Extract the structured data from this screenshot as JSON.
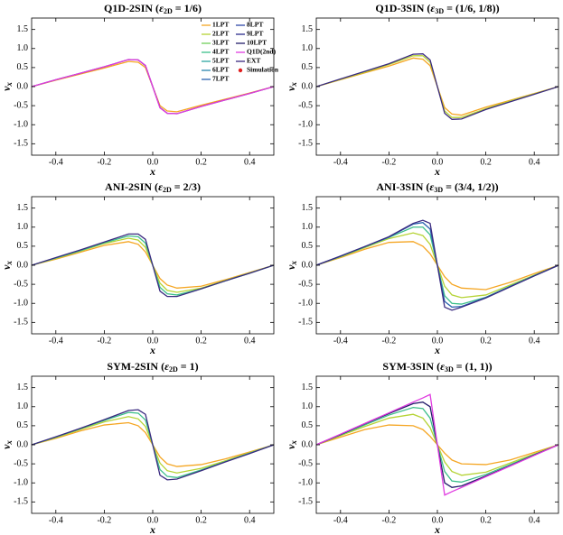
{
  "chart_data": [
    {
      "type": "line",
      "title": "Q1D-2SIN (",
      "title_symbol": "ε",
      "title_sub": "2D",
      "title_rest": " = 1/6)",
      "xlabel": "x",
      "ylabel": "v",
      "ylabel_sub": "x",
      "xlim": [
        -0.5,
        0.5
      ],
      "xticks": [
        -0.4,
        -0.2,
        {
          "value": 0,
          "label": "0.0"
        },
        0.2,
        0.4
      ],
      "ylim": [
        -1.8,
        1.8
      ],
      "yticks": [
        -1.5,
        {
          "value": -1,
          "label": "-1.0"
        },
        -0.5,
        {
          "value": 0,
          "label": "0.0"
        },
        0.5,
        {
          "value": 1,
          "label": "1.0"
        },
        1.5
      ],
      "x": [
        -0.5,
        -0.4,
        -0.3,
        -0.2,
        -0.1,
        -0.06,
        -0.03,
        0,
        0.03,
        0.06,
        0.1,
        0.2,
        0.3,
        0.4,
        0.5
      ],
      "legend": [
        {
          "name": "1LPT",
          "color": "#f5a623",
          "marker": "line"
        },
        {
          "name": "2LPT",
          "color": "#b5d334",
          "marker": "line"
        },
        {
          "name": "3LPT",
          "color": "#6fcf5a",
          "marker": "line"
        },
        {
          "name": "4LPT",
          "color": "#3cbf8a",
          "marker": "line"
        },
        {
          "name": "5LPT",
          "color": "#2ea6a0",
          "marker": "line"
        },
        {
          "name": "6LPT",
          "color": "#2b86ad",
          "marker": "line"
        },
        {
          "name": "7LPT",
          "color": "#2d64b0",
          "marker": "line"
        },
        {
          "name": "8LPT",
          "color": "#2f47a8",
          "marker": "line"
        },
        {
          "name": "9LPT",
          "color": "#2b2c8c",
          "marker": "line"
        },
        {
          "name": "10LPT",
          "color": "#241c6a",
          "marker": "line"
        },
        {
          "name": "Q1D(2nd)",
          "color": "#e03ce0",
          "marker": "line"
        },
        {
          "name": "EXT",
          "color": "#3a2a80",
          "marker": "line"
        },
        {
          "name": "Simulation",
          "color": "#e02020",
          "marker": "circle"
        }
      ],
      "series": [
        {
          "color": "#f5a623",
          "values": [
            0,
            0.17,
            0.33,
            0.49,
            0.66,
            0.64,
            0.5,
            0,
            -0.5,
            -0.64,
            -0.66,
            -0.49,
            -0.33,
            -0.17,
            0
          ]
        },
        {
          "color": "#3a2a80",
          "values": [
            0,
            0.18,
            0.35,
            0.52,
            0.71,
            0.7,
            0.55,
            0,
            -0.55,
            -0.7,
            -0.71,
            -0.52,
            -0.35,
            -0.18,
            0
          ]
        },
        {
          "color": "#e03ce0",
          "values": [
            0,
            0.18,
            0.35,
            0.52,
            0.71,
            0.7,
            0.56,
            0,
            -0.56,
            -0.7,
            -0.71,
            -0.52,
            -0.35,
            -0.18,
            0
          ]
        }
      ]
    },
    {
      "type": "line",
      "title": "Q1D-3SIN (",
      "title_symbol": "ε",
      "title_sub": "3D",
      "title_rest": " = (1/6, 1/8))",
      "xlabel": "x",
      "ylabel": "v",
      "ylabel_sub": "x",
      "xlim": [
        -0.5,
        0.5
      ],
      "xticks": [
        -0.4,
        -0.2,
        {
          "value": 0,
          "label": "0.0"
        },
        0.2,
        0.4
      ],
      "ylim": [
        -1.8,
        1.8
      ],
      "yticks": [
        -1.5,
        {
          "value": -1,
          "label": "-1.0"
        },
        -0.5,
        {
          "value": 0,
          "label": "0.0"
        },
        0.5,
        {
          "value": 1,
          "label": "1.0"
        },
        1.5
      ],
      "x": [
        -0.5,
        -0.4,
        -0.3,
        -0.2,
        -0.1,
        -0.06,
        -0.03,
        0,
        0.03,
        0.06,
        0.1,
        0.2,
        0.3,
        0.4,
        0.5
      ],
      "series": [
        {
          "color": "#f5a623",
          "values": [
            0,
            0.18,
            0.36,
            0.54,
            0.75,
            0.72,
            0.55,
            0,
            -0.55,
            -0.72,
            -0.75,
            -0.54,
            -0.36,
            -0.18,
            0
          ]
        },
        {
          "color": "#b5d334",
          "values": [
            0,
            0.19,
            0.38,
            0.58,
            0.81,
            0.81,
            0.64,
            0,
            -0.64,
            -0.81,
            -0.81,
            -0.58,
            -0.38,
            -0.19,
            0
          ]
        },
        {
          "color": "#3a2a80",
          "values": [
            0,
            0.2,
            0.4,
            0.6,
            0.85,
            0.86,
            0.7,
            0,
            -0.7,
            -0.86,
            -0.85,
            -0.6,
            -0.4,
            -0.2,
            0
          ]
        }
      ]
    },
    {
      "type": "line",
      "title": "ANI-2SIN (",
      "title_symbol": "ε",
      "title_sub": "2D",
      "title_rest": " = 2/3)",
      "xlabel": "x",
      "ylabel": "v",
      "ylabel_sub": "x",
      "xlim": [
        -0.5,
        0.5
      ],
      "xticks": [
        -0.4,
        -0.2,
        {
          "value": 0,
          "label": "0.0"
        },
        0.2,
        0.4
      ],
      "ylim": [
        -1.8,
        1.8
      ],
      "yticks": [
        -1.5,
        {
          "value": -1,
          "label": "-1.0"
        },
        -0.5,
        {
          "value": 0,
          "label": "0.0"
        },
        0.5,
        {
          "value": 1,
          "label": "1.0"
        },
        1.5
      ],
      "x": [
        -0.5,
        -0.4,
        -0.3,
        -0.2,
        -0.1,
        -0.06,
        -0.03,
        0,
        0.03,
        0.06,
        0.1,
        0.2,
        0.3,
        0.4,
        0.5
      ],
      "series": [
        {
          "color": "#f5a623",
          "values": [
            0,
            0.16,
            0.34,
            0.52,
            0.62,
            0.55,
            0.35,
            0,
            -0.35,
            -0.52,
            -0.6,
            -0.55,
            -0.38,
            -0.19,
            0
          ]
        },
        {
          "color": "#b5d334",
          "values": [
            0,
            0.18,
            0.37,
            0.57,
            0.71,
            0.66,
            0.47,
            0,
            -0.47,
            -0.66,
            -0.71,
            -0.6,
            -0.4,
            -0.2,
            0
          ]
        },
        {
          "color": "#3cbf8a",
          "values": [
            0,
            0.19,
            0.38,
            0.59,
            0.77,
            0.75,
            0.58,
            0,
            -0.58,
            -0.75,
            -0.78,
            -0.62,
            -0.41,
            -0.21,
            0
          ]
        },
        {
          "color": "#3a2a80",
          "values": [
            0,
            0.2,
            0.4,
            0.61,
            0.82,
            0.82,
            0.68,
            0,
            -0.68,
            -0.82,
            -0.82,
            -0.62,
            -0.41,
            -0.21,
            0
          ]
        }
      ]
    },
    {
      "type": "line",
      "title": "ANI-3SIN (",
      "title_symbol": "ε",
      "title_sub": "3D",
      "title_rest": " = (3/4, 1/2))",
      "xlabel": "x",
      "ylabel": "v",
      "ylabel_sub": "x",
      "xlim": [
        -0.5,
        0.5
      ],
      "xticks": [
        -0.4,
        -0.2,
        {
          "value": 0,
          "label": "0.0"
        },
        0.2,
        0.4
      ],
      "ylim": [
        -1.8,
        1.8
      ],
      "yticks": [
        -1.5,
        {
          "value": -1,
          "label": "-1.0"
        },
        -0.5,
        {
          "value": 0,
          "label": "0.0"
        },
        0.5,
        {
          "value": 1,
          "label": "1.0"
        },
        1.5
      ],
      "x": [
        -0.5,
        -0.4,
        -0.3,
        -0.2,
        -0.1,
        -0.06,
        -0.03,
        0,
        0.03,
        0.06,
        0.1,
        0.2,
        0.3,
        0.4,
        0.5
      ],
      "series": [
        {
          "color": "#f5a623",
          "values": [
            0,
            0.2,
            0.42,
            0.6,
            0.62,
            0.5,
            0.3,
            0,
            -0.3,
            -0.5,
            -0.6,
            -0.64,
            -0.45,
            -0.22,
            0
          ]
        },
        {
          "color": "#b5d334",
          "values": [
            0,
            0.22,
            0.46,
            0.7,
            0.85,
            0.78,
            0.55,
            0,
            -0.55,
            -0.78,
            -0.85,
            -0.78,
            -0.52,
            -0.26,
            0
          ]
        },
        {
          "color": "#3cbf8a",
          "values": [
            0,
            0.23,
            0.48,
            0.73,
            1.0,
            1.0,
            0.8,
            0,
            -0.8,
            -1.0,
            -1.02,
            -0.84,
            -0.55,
            -0.27,
            0
          ]
        },
        {
          "color": "#2d64b0",
          "values": [
            0,
            0.24,
            0.49,
            0.74,
            1.08,
            1.12,
            0.95,
            0,
            -0.95,
            -1.1,
            -1.08,
            -0.85,
            -0.56,
            -0.28,
            0
          ]
        },
        {
          "color": "#3a2a80",
          "values": [
            0,
            0.24,
            0.49,
            0.75,
            1.1,
            1.18,
            1.1,
            0,
            -1.1,
            -1.18,
            -1.1,
            -0.86,
            -0.57,
            -0.28,
            0
          ]
        }
      ]
    },
    {
      "type": "line",
      "title": "SYM-2SIN (",
      "title_symbol": "ε",
      "title_sub": "2D",
      "title_rest": " = 1)",
      "xlabel": "x",
      "ylabel": "v",
      "ylabel_sub": "x",
      "xlim": [
        -0.5,
        0.5
      ],
      "xticks": [
        -0.4,
        -0.2,
        {
          "value": 0,
          "label": "0.0"
        },
        0.2,
        0.4
      ],
      "ylim": [
        -1.8,
        1.8
      ],
      "yticks": [
        -1.5,
        {
          "value": -1,
          "label": "-1.0"
        },
        -0.5,
        {
          "value": 0,
          "label": "0.0"
        },
        0.5,
        {
          "value": 1,
          "label": "1.0"
        },
        1.5
      ],
      "x": [
        -0.5,
        -0.4,
        -0.3,
        -0.2,
        -0.1,
        -0.06,
        -0.03,
        0,
        0.03,
        0.06,
        0.1,
        0.2,
        0.3,
        0.4,
        0.5
      ],
      "series": [
        {
          "color": "#f5a623",
          "values": [
            0,
            0.17,
            0.36,
            0.52,
            0.58,
            0.5,
            0.32,
            0,
            -0.32,
            -0.5,
            -0.57,
            -0.52,
            -0.37,
            -0.19,
            0
          ]
        },
        {
          "color": "#b5d334",
          "values": [
            0,
            0.19,
            0.4,
            0.6,
            0.74,
            0.68,
            0.48,
            0,
            -0.48,
            -0.68,
            -0.74,
            -0.62,
            -0.42,
            -0.21,
            0
          ]
        },
        {
          "color": "#3cbf8a",
          "values": [
            0,
            0.2,
            0.42,
            0.64,
            0.85,
            0.83,
            0.65,
            0,
            -0.65,
            -0.83,
            -0.86,
            -0.66,
            -0.44,
            -0.22,
            0
          ]
        },
        {
          "color": "#3a2a80",
          "values": [
            0,
            0.21,
            0.43,
            0.66,
            0.9,
            0.92,
            0.8,
            0,
            -0.8,
            -0.92,
            -0.9,
            -0.68,
            -0.45,
            -0.23,
            0
          ]
        }
      ]
    },
    {
      "type": "line",
      "title": "SYM-3SIN (",
      "title_symbol": "ε",
      "title_sub": "3D",
      "title_rest": " = (1, 1))",
      "xlabel": "x",
      "ylabel": "v",
      "ylabel_sub": "x",
      "xlim": [
        -0.5,
        0.5
      ],
      "xticks": [
        -0.4,
        -0.2,
        {
          "value": 0,
          "label": "0.0"
        },
        0.2,
        0.4
      ],
      "ylim": [
        -1.8,
        1.8
      ],
      "yticks": [
        -1.5,
        {
          "value": -1,
          "label": "-1.0"
        },
        -0.5,
        {
          "value": 0,
          "label": "0.0"
        },
        0.5,
        {
          "value": 1,
          "label": "1.0"
        },
        1.5
      ],
      "x": [
        -0.5,
        -0.4,
        -0.3,
        -0.2,
        -0.1,
        -0.06,
        -0.03,
        0,
        0.03,
        0.06,
        0.1,
        0.2,
        0.3,
        0.4,
        0.5
      ],
      "series": [
        {
          "color": "#f5a623",
          "values": [
            0,
            0.2,
            0.4,
            0.52,
            0.5,
            0.4,
            0.22,
            0,
            -0.22,
            -0.4,
            -0.5,
            -0.52,
            -0.4,
            -0.2,
            0
          ]
        },
        {
          "color": "#b5d334",
          "values": [
            0,
            0.24,
            0.48,
            0.7,
            0.8,
            0.7,
            0.45,
            0,
            -0.45,
            -0.7,
            -0.8,
            -0.72,
            -0.48,
            -0.24,
            0
          ]
        },
        {
          "color": "#3cbf8a",
          "values": [
            0,
            0.26,
            0.52,
            0.78,
            0.98,
            0.95,
            0.7,
            0,
            -0.7,
            -0.95,
            -0.98,
            -0.78,
            -0.52,
            -0.26,
            0
          ]
        },
        {
          "color": "#241c6a",
          "values": [
            0,
            0.27,
            0.55,
            0.82,
            1.08,
            1.12,
            1.0,
            0,
            -1.0,
            -1.12,
            -1.08,
            -0.82,
            -0.55,
            -0.27,
            0
          ]
        },
        {
          "color": "#e03ce0",
          "values": [
            0,
            0.28,
            0.56,
            0.84,
            1.12,
            1.23,
            1.32,
            0,
            -1.32,
            -1.23,
            -1.12,
            -0.84,
            -0.56,
            -0.28,
            0
          ]
        }
      ]
    }
  ]
}
